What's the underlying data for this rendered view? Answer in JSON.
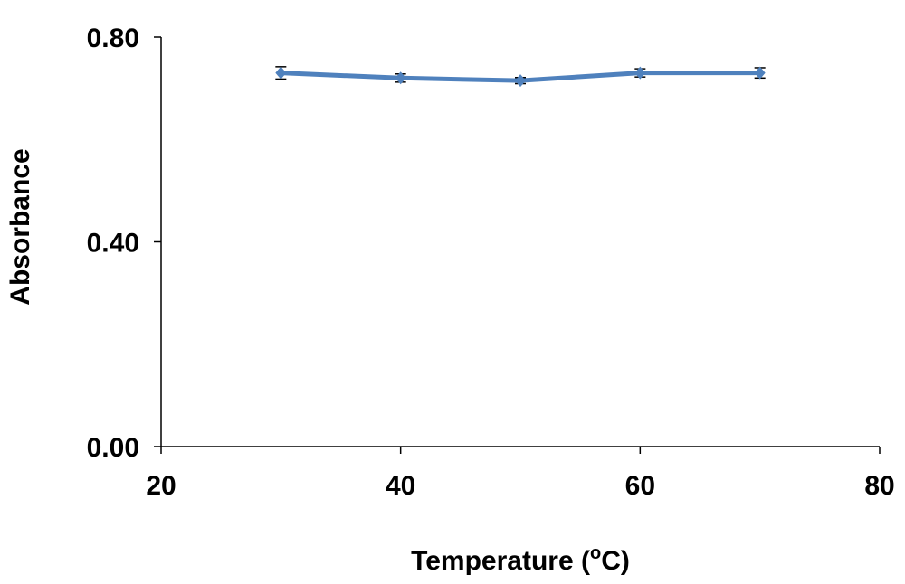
{
  "chart_data": {
    "type": "line",
    "xlabel_main": "Temperature (",
    "xlabel_sup": "o",
    "xlabel_end": "C)",
    "ylabel": "Absorbance",
    "xlim": [
      20,
      80
    ],
    "ylim": [
      0,
      0.8
    ],
    "x_ticks": [
      "20",
      "40",
      "60",
      "80"
    ],
    "y_ticks": [
      "0.00",
      "0.40",
      "0.80"
    ],
    "x_tick_values": [
      20,
      40,
      60,
      80
    ],
    "y_tick_values": [
      0,
      0.4,
      0.8
    ],
    "grid": false,
    "series": [
      {
        "x": [
          30,
          40,
          50,
          60,
          70
        ],
        "y": [
          0.73,
          0.72,
          0.715,
          0.73,
          0.73
        ],
        "error": [
          0.012,
          0.008,
          0.006,
          0.008,
          0.01
        ],
        "color": "#4f81bd"
      }
    ]
  }
}
